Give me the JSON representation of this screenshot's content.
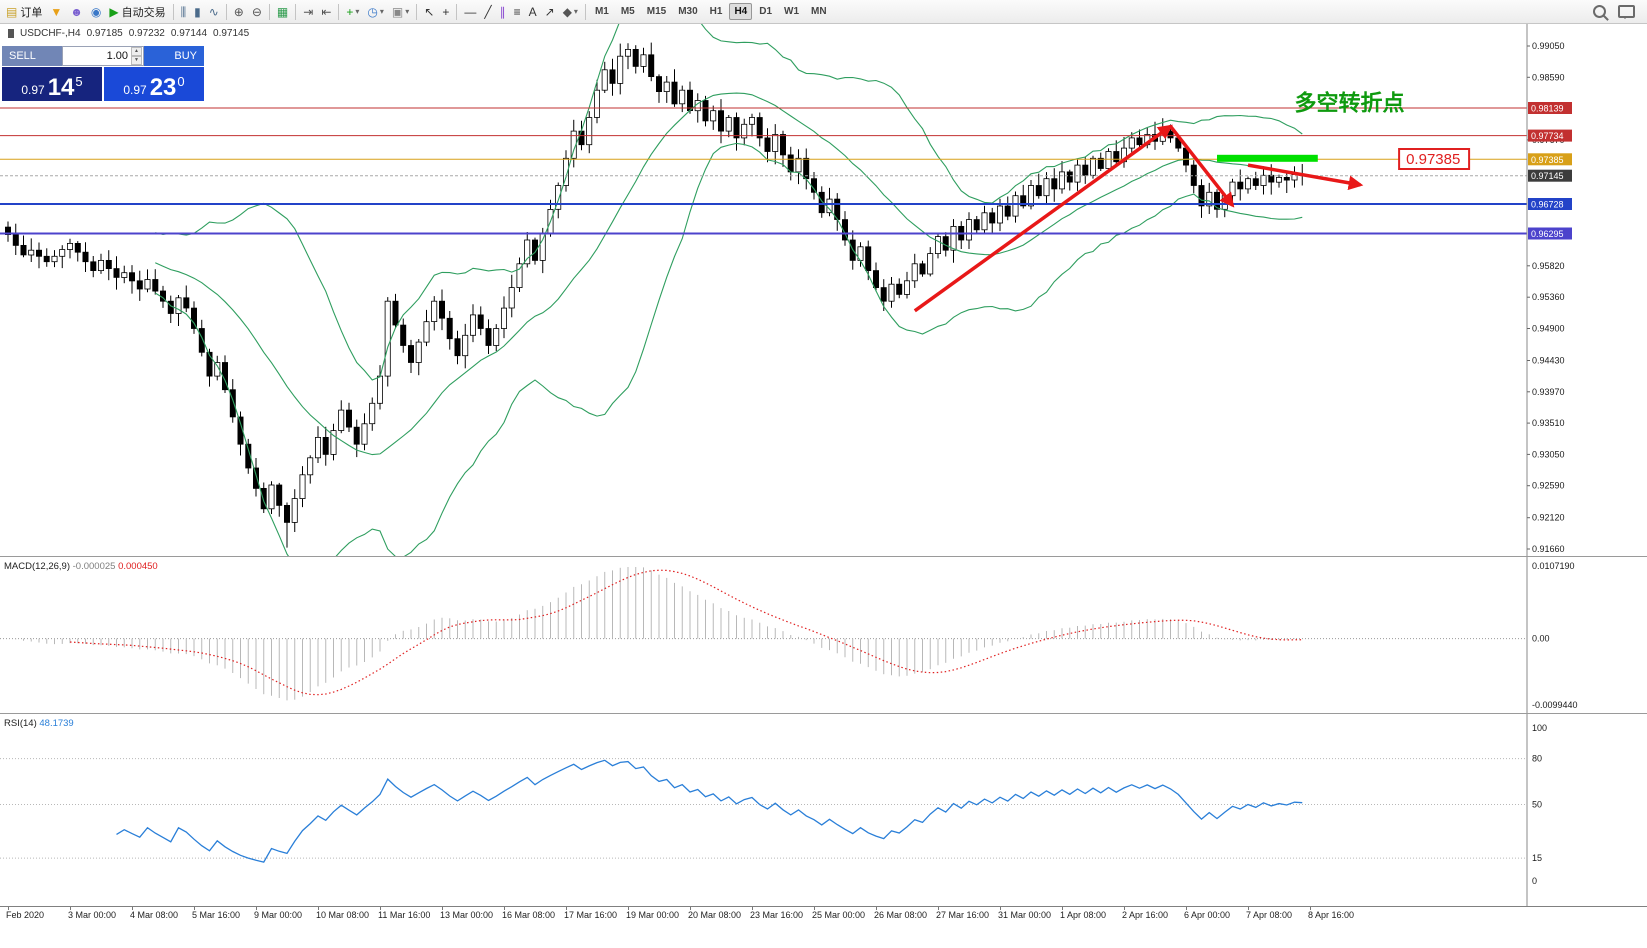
{
  "toolbar": {
    "groups": [
      {
        "name": "orders",
        "items": [
          {
            "name": "new-order-button",
            "glyph": "▤",
            "glyph_color": "#c8a028",
            "label": "订单"
          },
          {
            "name": "funnel-button",
            "glyph": "▼",
            "glyph_color": "#e8a018"
          },
          {
            "name": "profile-button",
            "glyph": "☻",
            "glyph_color": "#7a5fd0"
          },
          {
            "name": "community-button",
            "glyph": "◉",
            "glyph_color": "#3a78c8"
          },
          {
            "name": "autotrading-button",
            "glyph": "▶",
            "glyph_color": "#18a018",
            "label": "自动交易"
          }
        ]
      },
      {
        "name": "chart-types",
        "items": [
          {
            "name": "bar-chart-button",
            "glyph": "⫼",
            "glyph_color": "#4a6a8a"
          },
          {
            "name": "candlestick-chart-button",
            "glyph": "▮",
            "glyph_color": "#4a6a8a"
          },
          {
            "name": "line-chart-button",
            "glyph": "∿",
            "glyph_color": "#4a6a8a"
          }
        ]
      },
      {
        "name": "zoom",
        "items": [
          {
            "name": "zoom-in-button",
            "glyph": "⊕",
            "glyph_color": "#555555"
          },
          {
            "name": "zoom-out-button",
            "glyph": "⊖",
            "glyph_color": "#555555"
          }
        ]
      },
      {
        "name": "windows",
        "items": [
          {
            "name": "tile-windows-button",
            "glyph": "▦",
            "glyph_color": "#2a9a4a"
          }
        ]
      },
      {
        "name": "scroll",
        "items": [
          {
            "name": "auto-scroll-button",
            "glyph": "⇥",
            "glyph_color": "#555555"
          },
          {
            "name": "chart-shift-button",
            "glyph": "⇤",
            "glyph_color": "#555555"
          }
        ]
      },
      {
        "name": "insert",
        "items": [
          {
            "name": "add-indicator-button",
            "glyph": "+",
            "glyph_color": "#18a018",
            "dropdown": true
          },
          {
            "name": "period-button",
            "glyph": "◷",
            "glyph_color": "#3a78c8",
            "dropdown": true
          },
          {
            "name": "template-button",
            "glyph": "▣",
            "glyph_color": "#888888",
            "dropdown": true
          }
        ]
      },
      {
        "name": "pointer",
        "items": [
          {
            "name": "cursor-button",
            "glyph": "↖",
            "glyph_color": "#333333"
          },
          {
            "name": "crosshair-button",
            "glyph": "+",
            "glyph_color": "#333333"
          }
        ]
      },
      {
        "name": "draw",
        "items": [
          {
            "name": "horizontal-line-button",
            "glyph": "—",
            "glyph_color": "#333333"
          },
          {
            "name": "trendline-button",
            "glyph": "╱",
            "glyph_color": "#333333"
          },
          {
            "name": "channel-button",
            "glyph": "∥",
            "glyph_color": "#8a4ad0"
          },
          {
            "name": "fibonacci-button",
            "glyph": "≡",
            "glyph_color": "#333333"
          },
          {
            "name": "text-button",
            "glyph": "A",
            "glyph_color": "#333333"
          },
          {
            "name": "arrows-tool-button",
            "glyph": "↗",
            "glyph_color": "#333333"
          },
          {
            "name": "shapes-button",
            "glyph": "◆",
            "glyph_color": "#555555",
            "dropdown": true
          }
        ]
      }
    ],
    "timeframes": [
      {
        "label": "M1"
      },
      {
        "label": "M5"
      },
      {
        "label": "M15"
      },
      {
        "label": "M30"
      },
      {
        "label": "H1"
      },
      {
        "label": "H4",
        "active": true
      },
      {
        "label": "D1"
      },
      {
        "label": "W1"
      },
      {
        "label": "MN"
      }
    ],
    "right_items": [
      {
        "name": "search-button",
        "css": "search"
      },
      {
        "name": "chat-button",
        "css": "chat"
      }
    ]
  },
  "symbol_header": {
    "symbol": "USDCHF-,H4",
    "open": "0.97185",
    "high": "0.97232",
    "low": "0.97144",
    "close": "0.97145"
  },
  "trade_panel": {
    "sell_label": "SELL",
    "buy_label": "BUY",
    "volume": "1.00",
    "sell_price_prefix": "0.97",
    "sell_price_big": "14",
    "sell_price_sup": "5",
    "buy_price_prefix": "0.97",
    "buy_price_big": "23",
    "buy_price_sup": "0"
  },
  "chart_data": {
    "type": "candlestick",
    "symbol": "USDCHF-",
    "timeframe": "H4",
    "title": "USDCHF- H4 with Bollinger Bands, horizontal levels and trend annotations",
    "y_axis": {
      "min": 0.9166,
      "max": 0.9905,
      "plain_ticks": [
        0.9905,
        0.9859,
        0.9767,
        0.9582,
        0.9536,
        0.949,
        0.9443,
        0.9397,
        0.9351,
        0.9305,
        0.9259,
        0.9212,
        0.9166
      ]
    },
    "price_lines": [
      {
        "price": 0.98139,
        "label": "0.98139",
        "color": "#c23030",
        "width": 1,
        "type": "resistance"
      },
      {
        "price": 0.97734,
        "label": "0.97734",
        "color": "#c23030",
        "width": 1,
        "type": "resistance"
      },
      {
        "price": 0.97385,
        "label": "0.97385",
        "color": "#d8a018",
        "width": 1,
        "type": "pivot"
      },
      {
        "price": 0.97145,
        "label": "0.97145",
        "color": "#a8a8a8",
        "width": 1,
        "dash": "3,2",
        "badge_color": "#3c3c3c",
        "type": "current-bid"
      },
      {
        "price": 0.96728,
        "label": "0.96728",
        "color": "#2343c8",
        "width": 2,
        "type": "support"
      },
      {
        "price": 0.96295,
        "label": "0.96295",
        "color": "#4c43cc",
        "width": 2,
        "type": "support"
      }
    ],
    "bollinger": {
      "period": 20,
      "deviation": 2,
      "color": "#2f9e5f"
    },
    "closes": [
      0.9628,
      0.9612,
      0.9598,
      0.9605,
      0.9596,
      0.9588,
      0.9596,
      0.9606,
      0.9615,
      0.9602,
      0.9588,
      0.9575,
      0.959,
      0.9578,
      0.9565,
      0.9572,
      0.956,
      0.9548,
      0.9562,
      0.9545,
      0.953,
      0.9512,
      0.9535,
      0.952,
      0.949,
      0.9455,
      0.942,
      0.944,
      0.94,
      0.936,
      0.932,
      0.9285,
      0.9255,
      0.9225,
      0.926,
      0.923,
      0.9205,
      0.924,
      0.9275,
      0.93,
      0.933,
      0.9305,
      0.934,
      0.937,
      0.9345,
      0.932,
      0.935,
      0.938,
      0.942,
      0.953,
      0.9495,
      0.9465,
      0.944,
      0.947,
      0.95,
      0.953,
      0.9505,
      0.9475,
      0.945,
      0.948,
      0.951,
      0.949,
      0.9465,
      0.949,
      0.952,
      0.955,
      0.9585,
      0.962,
      0.959,
      0.963,
      0.9665,
      0.97,
      0.974,
      0.978,
      0.976,
      0.98,
      0.984,
      0.987,
      0.985,
      0.989,
      0.99,
      0.9875,
      0.9892,
      0.986,
      0.9838,
      0.9852,
      0.982,
      0.984,
      0.981,
      0.9825,
      0.9795,
      0.981,
      0.978,
      0.98,
      0.977,
      0.979,
      0.98,
      0.977,
      0.975,
      0.9775,
      0.9745,
      0.972,
      0.974,
      0.971,
      0.969,
      0.966,
      0.968,
      0.965,
      0.962,
      0.959,
      0.961,
      0.9575,
      0.955,
      0.953,
      0.9555,
      0.954,
      0.956,
      0.9585,
      0.957,
      0.96,
      0.9625,
      0.9605,
      0.964,
      0.962,
      0.965,
      0.9635,
      0.966,
      0.9645,
      0.967,
      0.9655,
      0.9685,
      0.967,
      0.97,
      0.9685,
      0.971,
      0.9695,
      0.972,
      0.9705,
      0.973,
      0.9715,
      0.974,
      0.9725,
      0.975,
      0.9735,
      0.9755,
      0.977,
      0.976,
      0.9775,
      0.9765,
      0.978,
      0.977,
      0.9755,
      0.973,
      0.97,
      0.967,
      0.969,
      0.9665,
      0.9685,
      0.9705,
      0.9695,
      0.971,
      0.97,
      0.9715,
      0.9705,
      0.9712,
      0.9708,
      0.9716,
      0.97145
    ],
    "spike_low": {
      "index": 36,
      "price": 0.9168
    },
    "annotations": {
      "trend_text": {
        "text": "多空转折点",
        "color": "#0f9a0f",
        "bar": 166,
        "price": 0.9822
      },
      "price_callout": {
        "text": "0.97385",
        "color": "#e02020",
        "bar": 179.5,
        "price": 0.9739
      },
      "green_zone": {
        "bar_start": 156,
        "bar_end": 169,
        "price": 0.974,
        "color": "#00e000"
      },
      "arrow_color": "#e81818",
      "arrows": [
        {
          "from": [
            117,
            0.9516
          ],
          "to": [
            150,
            0.9787
          ]
        },
        {
          "from": [
            150,
            0.9787
          ],
          "to": [
            158,
            0.9671
          ]
        },
        {
          "from": [
            160,
            0.973
          ],
          "to": [
            174.5,
            0.9701
          ]
        }
      ]
    }
  },
  "macd": {
    "label": "MACD(12,26,9)",
    "value_main": "-0.000025",
    "value_signal": "0.000450",
    "params": {
      "fast": 12,
      "slow": 26,
      "signal": 9
    },
    "axis_labels": [
      "0.0107190",
      "0.00",
      "-0.0099440"
    ],
    "axis_max": 0.010719,
    "axis_min": -0.009944,
    "histogram_color": "#b8b8b8",
    "signal_color": "#e02020"
  },
  "rsi": {
    "label": "RSI(14)",
    "value": "48.1739",
    "period": 14,
    "axis_levels": [
      100,
      80,
      50,
      15,
      0
    ],
    "dotted_levels": [
      80,
      50,
      15
    ],
    "line_color": "#2a7fd8"
  },
  "time_axis": {
    "labels": [
      "Feb 2020",
      "3 Mar 00:00",
      "4 Mar 08:00",
      "5 Mar 16:00",
      "9 Mar 00:00",
      "10 Mar 08:00",
      "11 Mar 16:00",
      "13 Mar 00:00",
      "16 Mar 08:00",
      "17 Mar 16:00",
      "19 Mar 00:00",
      "20 Mar 08:00",
      "23 Mar 16:00",
      "25 Mar 00:00",
      "26 Mar 08:00",
      "27 Mar 16:00",
      "31 Mar 00:00",
      "1 Apr 08:00",
      "2 Apr 16:00",
      "6 Apr 00:00",
      "7 Apr 08:00",
      "8 Apr 16:00"
    ]
  }
}
